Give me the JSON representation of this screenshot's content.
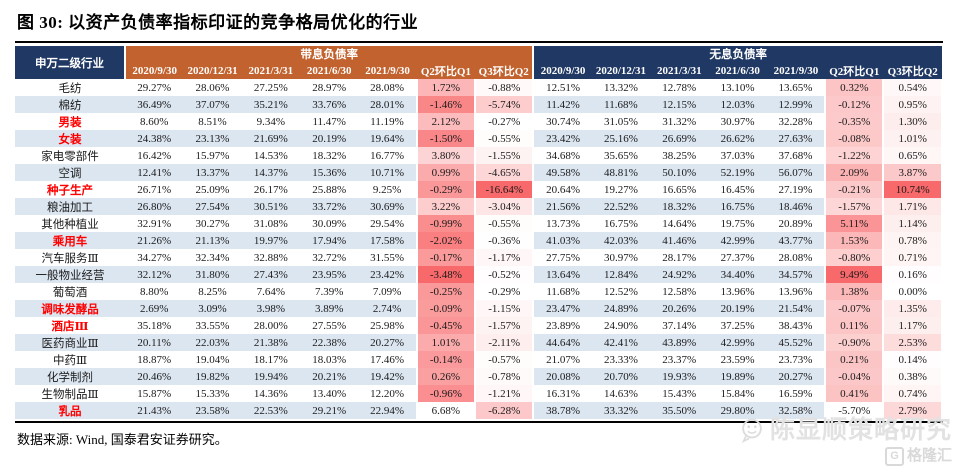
{
  "title": "图 30: 以资产负债率指标印证的竞争格局优化的行业",
  "table": {
    "industry_header": "申万二级行业",
    "groups": [
      {
        "key": "interest",
        "label": "带息负债率",
        "columns": [
          "2020/9/30",
          "2020/12/31",
          "2021/3/31",
          "2021/6/30",
          "2021/9/30",
          "Q2环比Q1",
          "Q3环比Q2"
        ]
      },
      {
        "key": "free",
        "label": "无息负债率",
        "columns": [
          "2020/9/30",
          "2020/12/31",
          "2021/3/31",
          "2021/6/30",
          "2021/9/30",
          "Q2环比Q1",
          "Q3环比Q2"
        ]
      }
    ],
    "heatmap": {
      "interest": "low_is_red",
      "free": "high_is_red"
    },
    "rows": [
      {
        "industry": "毛纺",
        "red": false,
        "interest": [
          "29.27%",
          "28.06%",
          "27.25%",
          "28.97%",
          "28.08%",
          "1.72%",
          "-0.88%"
        ],
        "free": [
          "12.51%",
          "13.32%",
          "12.78%",
          "13.10%",
          "13.65%",
          "0.32%",
          "0.54%"
        ]
      },
      {
        "industry": "棉纺",
        "red": false,
        "interest": [
          "36.49%",
          "37.07%",
          "35.21%",
          "33.76%",
          "28.01%",
          "-1.46%",
          "-5.74%"
        ],
        "free": [
          "11.42%",
          "11.68%",
          "12.15%",
          "12.03%",
          "12.99%",
          "-0.12%",
          "0.95%"
        ]
      },
      {
        "industry": "男装",
        "red": true,
        "interest": [
          "8.60%",
          "8.51%",
          "9.34%",
          "11.47%",
          "11.19%",
          "2.12%",
          "-0.27%"
        ],
        "free": [
          "30.74%",
          "31.05%",
          "31.32%",
          "30.97%",
          "32.28%",
          "-0.35%",
          "1.30%"
        ]
      },
      {
        "industry": "女装",
        "red": true,
        "interest": [
          "24.38%",
          "23.13%",
          "21.69%",
          "20.19%",
          "19.64%",
          "-1.50%",
          "-0.55%"
        ],
        "free": [
          "23.42%",
          "25.16%",
          "26.69%",
          "26.62%",
          "27.63%",
          "-0.08%",
          "1.01%"
        ]
      },
      {
        "industry": "家电零部件",
        "red": false,
        "interest": [
          "16.42%",
          "15.97%",
          "14.53%",
          "18.32%",
          "16.77%",
          "3.80%",
          "-1.55%"
        ],
        "free": [
          "34.68%",
          "35.65%",
          "38.25%",
          "37.03%",
          "37.68%",
          "-1.22%",
          "0.65%"
        ]
      },
      {
        "industry": "空调",
        "red": false,
        "interest": [
          "12.41%",
          "13.37%",
          "14.37%",
          "15.36%",
          "10.71%",
          "0.99%",
          "-4.65%"
        ],
        "free": [
          "49.58%",
          "48.81%",
          "50.10%",
          "52.19%",
          "56.07%",
          "2.09%",
          "3.87%"
        ]
      },
      {
        "industry": "种子生产",
        "red": true,
        "interest": [
          "26.71%",
          "25.09%",
          "26.17%",
          "25.88%",
          "9.25%",
          "-0.29%",
          "-16.64%"
        ],
        "free": [
          "20.64%",
          "19.27%",
          "16.65%",
          "16.45%",
          "27.19%",
          "-0.21%",
          "10.74%"
        ]
      },
      {
        "industry": "粮油加工",
        "red": false,
        "interest": [
          "26.80%",
          "27.54%",
          "30.51%",
          "33.72%",
          "30.69%",
          "3.22%",
          "-3.04%"
        ],
        "free": [
          "21.56%",
          "22.52%",
          "18.32%",
          "16.75%",
          "18.46%",
          "-1.57%",
          "1.71%"
        ]
      },
      {
        "industry": "其他种植业",
        "red": false,
        "interest": [
          "32.91%",
          "30.27%",
          "31.08%",
          "30.09%",
          "29.54%",
          "-0.99%",
          "-0.55%"
        ],
        "free": [
          "13.73%",
          "16.75%",
          "14.64%",
          "19.75%",
          "20.89%",
          "5.11%",
          "1.14%"
        ]
      },
      {
        "industry": "乘用车",
        "red": true,
        "interest": [
          "21.26%",
          "21.13%",
          "19.97%",
          "17.94%",
          "17.58%",
          "-2.02%",
          "-0.36%"
        ],
        "free": [
          "41.03%",
          "42.03%",
          "41.46%",
          "42.99%",
          "43.77%",
          "1.53%",
          "0.78%"
        ]
      },
      {
        "industry": "汽车服务Ⅲ",
        "red": false,
        "interest": [
          "34.27%",
          "32.34%",
          "32.88%",
          "32.72%",
          "31.55%",
          "-0.17%",
          "-1.17%"
        ],
        "free": [
          "27.75%",
          "30.97%",
          "28.17%",
          "27.37%",
          "28.08%",
          "-0.80%",
          "0.71%"
        ]
      },
      {
        "industry": "一般物业经营",
        "red": false,
        "interest": [
          "32.12%",
          "31.80%",
          "27.43%",
          "23.95%",
          "23.42%",
          "-3.48%",
          "-0.52%"
        ],
        "free": [
          "13.64%",
          "12.84%",
          "24.92%",
          "34.40%",
          "34.57%",
          "9.49%",
          "0.16%"
        ]
      },
      {
        "industry": "葡萄酒",
        "red": false,
        "interest": [
          "8.80%",
          "8.25%",
          "7.64%",
          "7.39%",
          "7.09%",
          "-0.25%",
          "-0.29%"
        ],
        "free": [
          "11.68%",
          "12.52%",
          "12.58%",
          "13.96%",
          "13.96%",
          "1.38%",
          "0.00%"
        ]
      },
      {
        "industry": "调味发酵品",
        "red": true,
        "interest": [
          "2.69%",
          "3.09%",
          "3.98%",
          "3.89%",
          "2.74%",
          "-0.09%",
          "-1.15%"
        ],
        "free": [
          "23.47%",
          "24.89%",
          "20.26%",
          "20.19%",
          "21.54%",
          "-0.07%",
          "1.35%"
        ]
      },
      {
        "industry": "酒店Ⅲ",
        "red": true,
        "interest": [
          "35.18%",
          "33.55%",
          "28.00%",
          "27.55%",
          "25.98%",
          "-0.45%",
          "-1.57%"
        ],
        "free": [
          "23.89%",
          "24.90%",
          "37.14%",
          "37.25%",
          "38.43%",
          "0.11%",
          "1.17%"
        ]
      },
      {
        "industry": "医药商业Ⅲ",
        "red": false,
        "interest": [
          "20.11%",
          "22.03%",
          "21.38%",
          "22.38%",
          "20.27%",
          "1.01%",
          "-2.11%"
        ],
        "free": [
          "44.64%",
          "42.41%",
          "43.89%",
          "42.99%",
          "45.52%",
          "-0.90%",
          "2.53%"
        ]
      },
      {
        "industry": "中药Ⅲ",
        "red": false,
        "interest": [
          "18.87%",
          "19.04%",
          "18.17%",
          "18.03%",
          "17.46%",
          "-0.14%",
          "-0.57%"
        ],
        "free": [
          "21.07%",
          "23.33%",
          "23.37%",
          "23.59%",
          "23.73%",
          "0.21%",
          "0.14%"
        ]
      },
      {
        "industry": "化学制剂",
        "red": false,
        "interest": [
          "20.46%",
          "19.82%",
          "19.94%",
          "20.21%",
          "19.42%",
          "0.26%",
          "-0.78%"
        ],
        "free": [
          "20.08%",
          "20.70%",
          "19.93%",
          "19.89%",
          "20.27%",
          "-0.04%",
          "0.38%"
        ]
      },
      {
        "industry": "生物制品Ⅲ",
        "red": false,
        "interest": [
          "15.87%",
          "15.33%",
          "14.36%",
          "13.40%",
          "12.20%",
          "-0.96%",
          "-1.21%"
        ],
        "free": [
          "16.31%",
          "14.63%",
          "15.43%",
          "15.84%",
          "16.59%",
          "0.41%",
          "0.74%"
        ]
      },
      {
        "industry": "乳品",
        "red": true,
        "interest": [
          "21.43%",
          "23.58%",
          "22.53%",
          "29.21%",
          "22.94%",
          "6.68%",
          "-6.28%"
        ],
        "free": [
          "38.78%",
          "33.32%",
          "35.50%",
          "29.80%",
          "32.58%",
          "-5.70%",
          "2.79%"
        ]
      }
    ]
  },
  "footer": {
    "source": "数据来源: Wind, 国泰君安证券研究。"
  },
  "watermark": {
    "account_name": "陈显顺策略研究",
    "platform": "格隆汇",
    "platform_initial": "G"
  },
  "colors": {
    "header_navy": "#203864",
    "header_orange": "#C2622E",
    "stripe": "#DCE6F1",
    "heat_red": "#F8696B",
    "industry_highlight": "#FF0000"
  }
}
